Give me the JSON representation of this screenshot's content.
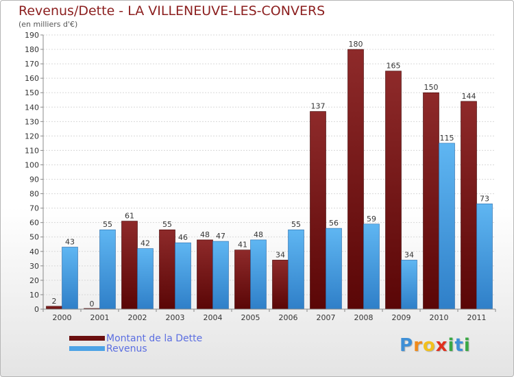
{
  "title": "Revenus/Dette - LA VILLENEUVE-LES-CONVERS",
  "subtitle": "(en milliers d'€)",
  "chart_data": {
    "type": "bar",
    "categories": [
      "2000",
      "2001",
      "2002",
      "2003",
      "2004",
      "2005",
      "2006",
      "2007",
      "2008",
      "2009",
      "2010",
      "2011"
    ],
    "series": [
      {
        "name": "Montant de la Dette",
        "values": [
          2,
          0,
          61,
          55,
          48,
          41,
          34,
          137,
          180,
          165,
          150,
          144
        ],
        "color": "#7a1414"
      },
      {
        "name": "Revenus",
        "values": [
          43,
          55,
          42,
          46,
          47,
          48,
          55,
          56,
          59,
          34,
          115,
          73
        ],
        "color": "#4da3e6"
      }
    ],
    "ylim": [
      0,
      190
    ],
    "ytick_step": 10,
    "grid": true,
    "legend": "bottom-left"
  },
  "legend": {
    "items": [
      {
        "label": "Montant de la Dette",
        "color": "#6b0f0f"
      },
      {
        "label": "Revenus",
        "color": "#4da3e6"
      }
    ]
  },
  "logo": {
    "letters": [
      "P",
      "r",
      "o",
      "x",
      "i",
      "t",
      "i"
    ],
    "colors": [
      "#3e8fd6",
      "#f08a1c",
      "#f2c11c",
      "#e0301e",
      "#3aa845",
      "#3e8fd6",
      "#3aa845"
    ]
  }
}
